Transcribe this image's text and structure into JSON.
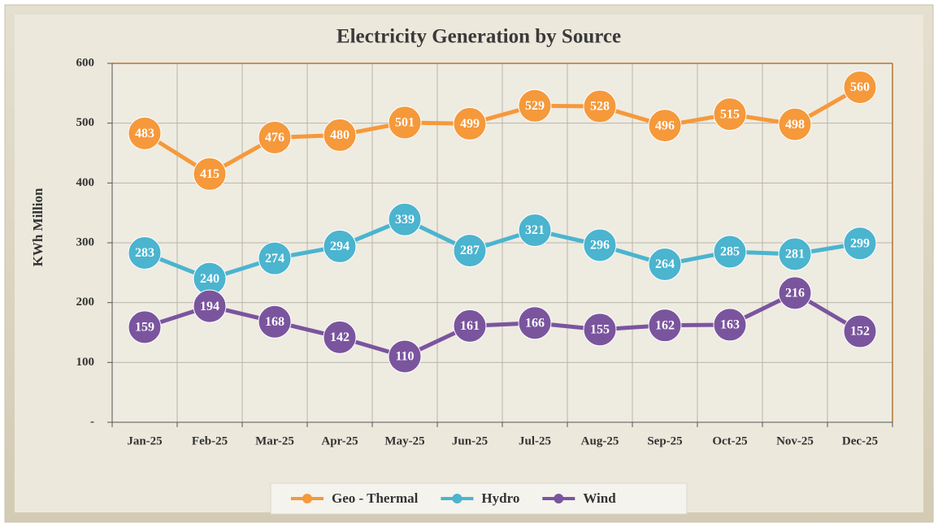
{
  "chart_data": {
    "type": "line",
    "title": "Electricity Generation by Source",
    "y_label": "KWh Million",
    "categories": [
      "Jan-25",
      "Feb-25",
      "Mar-25",
      "Apr-25",
      "May-25",
      "Jun-25",
      "Jul-25",
      "Aug-25",
      "Sep-25",
      "Oct-25",
      "Nov-25",
      "Dec-25"
    ],
    "series": [
      {
        "name": "Geo - Thermal",
        "color": "#f5993b",
        "values": [
          483,
          415,
          476,
          480,
          501,
          499,
          529,
          528,
          496,
          515,
          498,
          560
        ]
      },
      {
        "name": "Hydro",
        "color": "#4bb4cf",
        "values": [
          283,
          240,
          274,
          294,
          339,
          287,
          321,
          296,
          264,
          285,
          281,
          299
        ]
      },
      {
        "name": "Wind",
        "color": "#7a559e",
        "values": [
          159,
          194,
          168,
          142,
          110,
          161,
          166,
          155,
          162,
          163,
          216,
          152
        ]
      }
    ],
    "ylim": [
      0,
      600
    ],
    "yticks": [
      {
        "value": 0,
        "label": "-"
      },
      100,
      200,
      300,
      400,
      500,
      600
    ],
    "grid": true,
    "legend": "bottom"
  }
}
